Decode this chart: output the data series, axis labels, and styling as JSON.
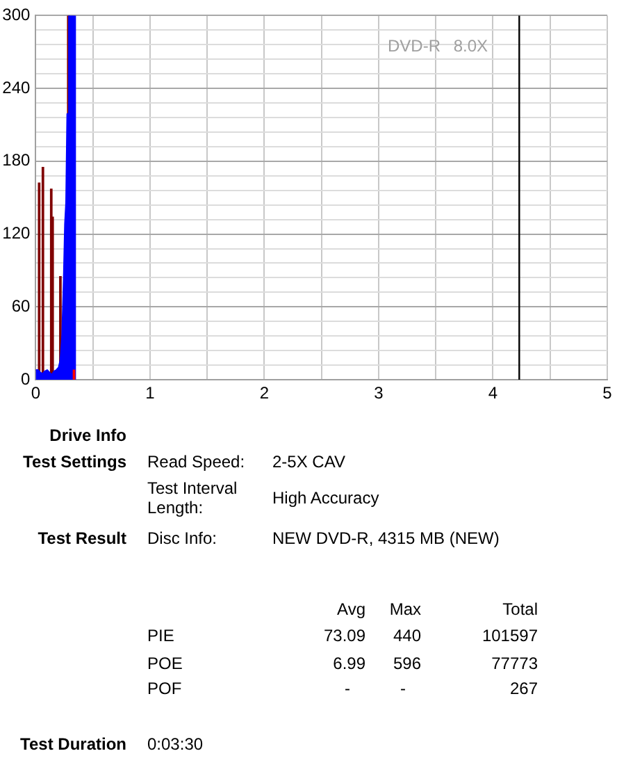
{
  "chart_data": {
    "type": "area",
    "xlim": [
      0,
      5
    ],
    "xticks": [
      0,
      {
        "value": 0.5,
        "label": null
      },
      1,
      {
        "value": 1.5,
        "label": null
      },
      2,
      {
        "value": 2.5,
        "label": null
      },
      3,
      {
        "value": 3.5,
        "label": null
      },
      4,
      {
        "value": 4.5,
        "label": null
      },
      5
    ],
    "ylim": [
      0,
      300
    ],
    "yticks": [
      0,
      {
        "value": 12,
        "label": null
      },
      {
        "value": 24,
        "label": null
      },
      {
        "value": 36,
        "label": null
      },
      {
        "value": 48,
        "label": null
      },
      60,
      {
        "value": 72,
        "label": null
      },
      {
        "value": 84,
        "label": null
      },
      {
        "value": 96,
        "label": null
      },
      {
        "value": 108,
        "label": null
      },
      120,
      {
        "value": 132,
        "label": null
      },
      {
        "value": 144,
        "label": null
      },
      {
        "value": 156,
        "label": null
      },
      {
        "value": 168,
        "label": null
      },
      180,
      {
        "value": 192,
        "label": null
      },
      {
        "value": 204,
        "label": null
      },
      {
        "value": 216,
        "label": null
      },
      {
        "value": 228,
        "label": null
      },
      240,
      {
        "value": 252,
        "label": null
      },
      {
        "value": 264,
        "label": null
      },
      {
        "value": 276,
        "label": null
      },
      {
        "value": 288,
        "label": null
      },
      300
    ],
    "grid": true,
    "series": [
      {
        "type": "bar",
        "color": "#800000",
        "x": [
          0.03,
          0.063,
          0.136,
          0.148,
          0.216,
          0.285
        ],
        "values": [
          162,
          175,
          157,
          134,
          85,
          300
        ]
      },
      {
        "color": "#0000ff",
        "x": [
          0,
          0.02,
          0.04,
          0.06,
          0.08,
          0.1,
          0.12,
          0.14,
          0.16,
          0.18,
          0.2,
          0.215,
          0.23,
          0.245,
          0.255,
          0.265,
          0.275,
          0.285,
          0.29,
          0.345,
          0.346
        ],
        "values": [
          8,
          8,
          6,
          5,
          7,
          8,
          6,
          4,
          7,
          8,
          10,
          16,
          36,
          85,
          128,
          146,
          219,
          219,
          300,
          300,
          0
        ]
      },
      {
        "type": "bar",
        "color": "#ff0000",
        "x": [
          0.335
        ],
        "values": [
          8
        ]
      }
    ],
    "ref_lines": [
      {
        "axis": "x",
        "value": 4.23,
        "color": "#000000"
      }
    ],
    "annotations": [
      "DVD-R 8.0X",
      "Drive Info",
      "Test Settings",
      "Read Speed:",
      "2-5X CAV",
      "Test Interval Length:",
      "High Accuracy",
      "Test Result",
      "Disc Info:",
      "NEW DVD-R, 4315 MB (NEW)",
      "Avg",
      "Max",
      "Total",
      "PIE",
      "73.09",
      "440",
      "101597",
      "POE",
      "6.99",
      "596",
      "77773",
      "POF",
      "-",
      "-",
      "267",
      "Test Duration",
      "0:03:30"
    ]
  }
}
